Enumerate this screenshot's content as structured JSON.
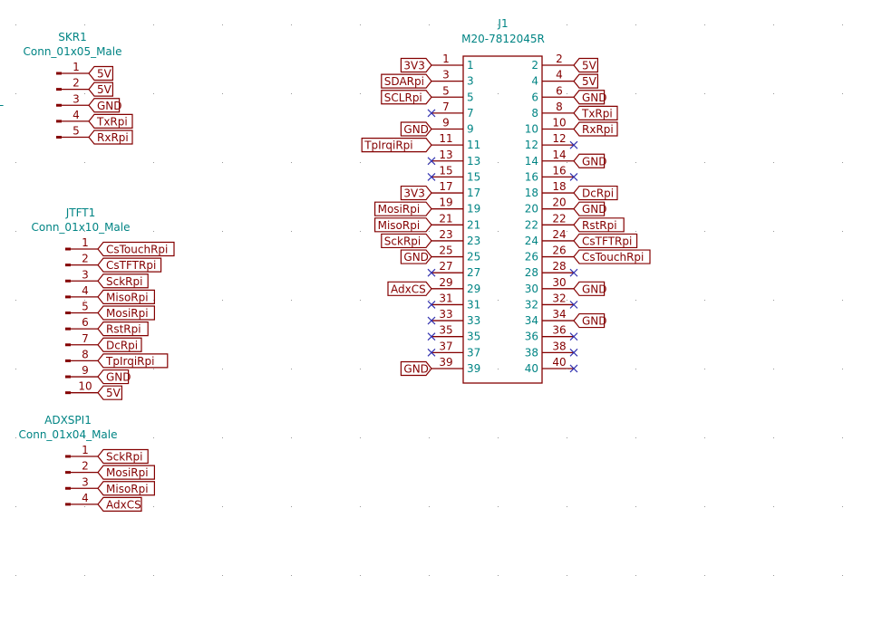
{
  "colors": {
    "wire": "#840000",
    "text": "#008484",
    "noconnect": "#3333b0",
    "grid": "#999999"
  },
  "edge_text": "L",
  "j1": {
    "reference": "J1",
    "value": "M20-7812045R",
    "left_pins": [
      {
        "num": "1",
        "label": "3V3"
      },
      {
        "num": "3",
        "label": "SDARpi"
      },
      {
        "num": "5",
        "label": "SCLRpi"
      },
      {
        "num": "7",
        "label": null
      },
      {
        "num": "9",
        "label": "GND"
      },
      {
        "num": "11",
        "label": "TpIrqiRpi"
      },
      {
        "num": "13",
        "label": null
      },
      {
        "num": "15",
        "label": null
      },
      {
        "num": "17",
        "label": "3V3"
      },
      {
        "num": "19",
        "label": "MosiRpi"
      },
      {
        "num": "21",
        "label": "MisoRpi"
      },
      {
        "num": "23",
        "label": "SckRpi"
      },
      {
        "num": "25",
        "label": "GND"
      },
      {
        "num": "27",
        "label": null
      },
      {
        "num": "29",
        "label": "AdxCS"
      },
      {
        "num": "31",
        "label": null
      },
      {
        "num": "33",
        "label": null
      },
      {
        "num": "35",
        "label": null
      },
      {
        "num": "37",
        "label": null
      },
      {
        "num": "39",
        "label": "GND"
      }
    ],
    "right_pins": [
      {
        "num": "2",
        "label": "5V"
      },
      {
        "num": "4",
        "label": "5V"
      },
      {
        "num": "6",
        "label": "GND"
      },
      {
        "num": "8",
        "label": "TxRpi"
      },
      {
        "num": "10",
        "label": "RxRpi"
      },
      {
        "num": "12",
        "label": null
      },
      {
        "num": "14",
        "label": "GND"
      },
      {
        "num": "16",
        "label": null
      },
      {
        "num": "18",
        "label": "DcRpi"
      },
      {
        "num": "20",
        "label": "GND"
      },
      {
        "num": "22",
        "label": "RstRpi"
      },
      {
        "num": "24",
        "label": "CsTFTRpi"
      },
      {
        "num": "26",
        "label": "CsTouchRpi"
      },
      {
        "num": "28",
        "label": null
      },
      {
        "num": "30",
        "label": "GND"
      },
      {
        "num": "32",
        "label": null
      },
      {
        "num": "34",
        "label": "GND"
      },
      {
        "num": "36",
        "label": null
      },
      {
        "num": "38",
        "label": null
      },
      {
        "num": "40",
        "label": null
      }
    ]
  },
  "connectors": [
    {
      "reference": "SKR1",
      "value": "Conn_01x05_Male",
      "pins": [
        {
          "num": "1",
          "label": "5V"
        },
        {
          "num": "2",
          "label": "5V"
        },
        {
          "num": "3",
          "label": "GND"
        },
        {
          "num": "4",
          "label": "TxRpi"
        },
        {
          "num": "5",
          "label": "RxRpi"
        }
      ]
    },
    {
      "reference": "JTFT1",
      "value": "Conn_01x10_Male",
      "pins": [
        {
          "num": "1",
          "label": "CsTouchRpi"
        },
        {
          "num": "2",
          "label": "CsTFTRpi"
        },
        {
          "num": "3",
          "label": "SckRpi"
        },
        {
          "num": "4",
          "label": "MisoRpi"
        },
        {
          "num": "5",
          "label": "MosiRpi"
        },
        {
          "num": "6",
          "label": "RstRpi"
        },
        {
          "num": "7",
          "label": "DcRpi"
        },
        {
          "num": "8",
          "label": "TpIrqiRpi"
        },
        {
          "num": "9",
          "label": "GND"
        },
        {
          "num": "10",
          "label": "5V"
        }
      ]
    },
    {
      "reference": "ADXSPI1",
      "value": "Conn_01x04_Male",
      "pins": [
        {
          "num": "1",
          "label": "SckRpi"
        },
        {
          "num": "2",
          "label": "MosiRpi"
        },
        {
          "num": "3",
          "label": "MisoRpi"
        },
        {
          "num": "4",
          "label": "AdxCS"
        }
      ]
    }
  ]
}
